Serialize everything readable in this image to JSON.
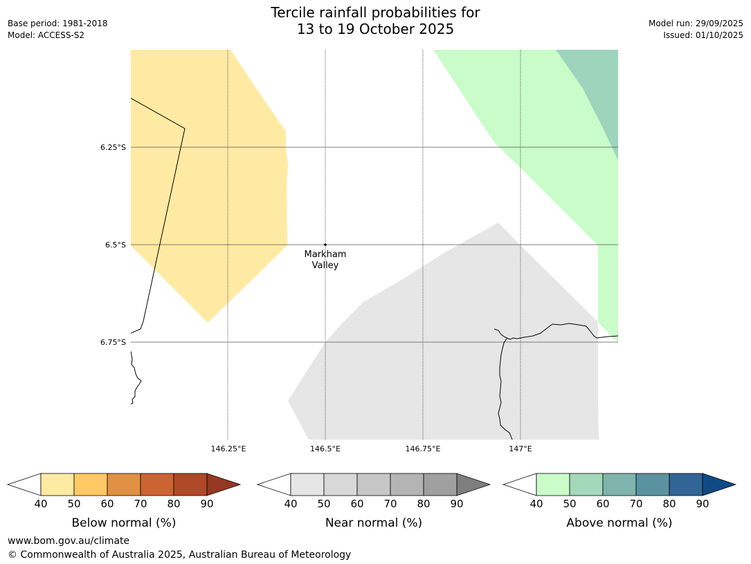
{
  "title": {
    "line1": "Tercile rainfall probabilities for",
    "line2": "13 to 19 October 2025"
  },
  "meta_left": {
    "base_period": "Base period: 1981-2018",
    "model": "Model: ACCESS-S2"
  },
  "meta_right": {
    "model_run": "Model run: 29/09/2025",
    "issued": "Issued: 01/10/2025"
  },
  "map": {
    "lat_labels": [
      "6.25°S",
      "6.5°S",
      "6.75°S"
    ],
    "lon_labels": [
      "146.25°E",
      "146.5°E",
      "146.75°E",
      "147°E"
    ],
    "place": {
      "name_line1": "Markham",
      "name_line2": "Valley"
    },
    "regions": [
      {
        "name": "below-normal-40-50",
        "category": "Below normal",
        "range": "40-50",
        "color": "#ffeaa3"
      },
      {
        "name": "above-normal-40-50",
        "category": "Above normal",
        "range": "40-50",
        "color": "#c9fcc8"
      },
      {
        "name": "above-normal-50-60",
        "category": "Above normal",
        "range": "50-60",
        "color": "#9ed3bc"
      },
      {
        "name": "near-normal-40-50",
        "category": "Near normal",
        "range": "40-50",
        "color": "#e6e6e6"
      }
    ]
  },
  "legends": [
    {
      "label": "Below normal (%)",
      "ticks": [
        "40",
        "50",
        "60",
        "70",
        "80",
        "90"
      ],
      "colors": [
        "#ffeaa3",
        "#ffc964",
        "#e09143",
        "#cb6432",
        "#af4927",
        "#943822"
      ]
    },
    {
      "label": "Near normal (%)",
      "ticks": [
        "40",
        "50",
        "60",
        "70",
        "80",
        "90"
      ],
      "colors": [
        "#e6e6e6",
        "#d8d8d8",
        "#c6c6c6",
        "#b4b4b4",
        "#a0a0a0",
        "#7e7e7e"
      ]
    },
    {
      "label": "Above normal (%)",
      "ticks": [
        "40",
        "50",
        "60",
        "70",
        "80",
        "90"
      ],
      "colors": [
        "#c9fcc8",
        "#a4d8bb",
        "#7fb5ad",
        "#5a92a0",
        "#316595",
        "#104a84"
      ]
    }
  ],
  "footer": {
    "url": "www.bom.gov.au/climate",
    "copyright": "© Commonwealth of Australia 2025, Australian Bureau of Meteorology"
  }
}
